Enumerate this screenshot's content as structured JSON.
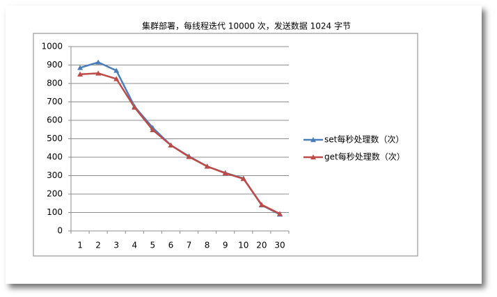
{
  "chart_data": {
    "type": "line",
    "title": "集群部署，每线程迭代 10000 次，发送数据 1024 字节",
    "categories": [
      "1",
      "2",
      "3",
      "4",
      "5",
      "6",
      "7",
      "8",
      "9",
      "10",
      "20",
      "30"
    ],
    "series": [
      {
        "name": "set每秒处理数（次）",
        "color": "#4a7ebb",
        "values": [
          885,
          915,
          870,
          675,
          560,
          465,
          405,
          350,
          315,
          285,
          140,
          90
        ]
      },
      {
        "name": "get每秒处理数（次）",
        "color": "#be4b48",
        "values": [
          850,
          855,
          825,
          670,
          548,
          465,
          402,
          350,
          313,
          283,
          142,
          93
        ]
      }
    ],
    "ylim": [
      0,
      1000
    ],
    "yticks": [
      0,
      100,
      200,
      300,
      400,
      500,
      600,
      700,
      800,
      900,
      1000
    ],
    "grid": true,
    "legend": "right"
  }
}
